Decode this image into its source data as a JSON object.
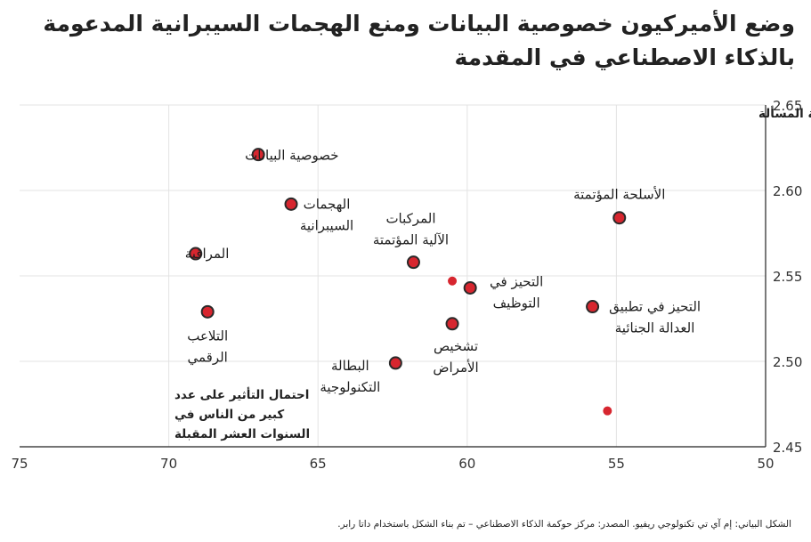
{
  "title_line1": "وضع الأميركيون خصوصية البيانات ومنع الهجمات السيبرانية المدعومة",
  "title_line2": "بالذكاء الاصطناعي في المقدمة",
  "source": "الشكل البياني: إم آي تي تكنولوجي ريفيو. المصدر: مركز حوكمة الذكاء الاصطناعي – تم بناء الشكل باستخدام داتا رابر.",
  "colors": {
    "point": "#d7262f",
    "stroke": "#2a2a2a",
    "grid": "#e3e3e3",
    "axis": "#222222"
  },
  "chart_data": {
    "type": "scatter",
    "title": "وضع الأميركيون خصوصية البيانات ومنع الهجمات السيبرانية المدعومة بالذكاء الاصطناعي في المقدمة",
    "xlabel": [
      "احتمال التأثير على عدد",
      "كبير من الناس في",
      "السنوات العشر المقبلة"
    ],
    "ylabel": "أهمية المسألة",
    "xlim": [
      75,
      50
    ],
    "ylim": [
      2.45,
      2.65
    ],
    "xticks": [
      75,
      70,
      65,
      60,
      55,
      50
    ],
    "yticks": [
      2.45,
      2.5,
      2.55,
      2.6,
      2.65
    ],
    "xtick_labels": [
      "75",
      "70",
      "65",
      "60",
      "55",
      "50"
    ],
    "ytick_labels": [
      "2.45",
      "2.50",
      "2.55",
      "2.60",
      "2.65"
    ],
    "points": [
      {
        "label": [
          "خصوصية البيانات"
        ],
        "x": 67.0,
        "y": 2.621,
        "outlined": true
      },
      {
        "label": [
          "الهجمات",
          "السيبرانية"
        ],
        "x": 65.9,
        "y": 2.592,
        "outlined": true
      },
      {
        "label": [
          "المراقبة"
        ],
        "x": 69.1,
        "y": 2.563,
        "outlined": true
      },
      {
        "label": [
          "التلاعب",
          "الرقمي"
        ],
        "x": 68.7,
        "y": 2.529,
        "outlined": true
      },
      {
        "label": [
          "المركبات",
          "الآلية المؤتمتة"
        ],
        "x": 61.8,
        "y": 2.558,
        "outlined": true
      },
      {
        "label": [
          "الأسلحة المؤتمتة"
        ],
        "x": 54.9,
        "y": 2.584,
        "outlined": true
      },
      {
        "label": [
          "التحيز في",
          "التوظيف"
        ],
        "x": 59.9,
        "y": 2.543,
        "outlined": true
      },
      {
        "label": [
          "التحيز في تطبيق",
          "العدالة الجنائية"
        ],
        "x": 55.8,
        "y": 2.532,
        "outlined": true
      },
      {
        "label": [
          "تشخيص",
          "الأمراض"
        ],
        "x": 60.5,
        "y": 2.522,
        "outlined": true
      },
      {
        "label": [
          "البطالة",
          "التكنولوجية"
        ],
        "x": 62.4,
        "y": 2.499,
        "outlined": true
      },
      {
        "label": [],
        "x": 60.5,
        "y": 2.547,
        "outlined": false
      },
      {
        "label": [],
        "x": 55.3,
        "y": 2.471,
        "outlined": false
      }
    ]
  }
}
